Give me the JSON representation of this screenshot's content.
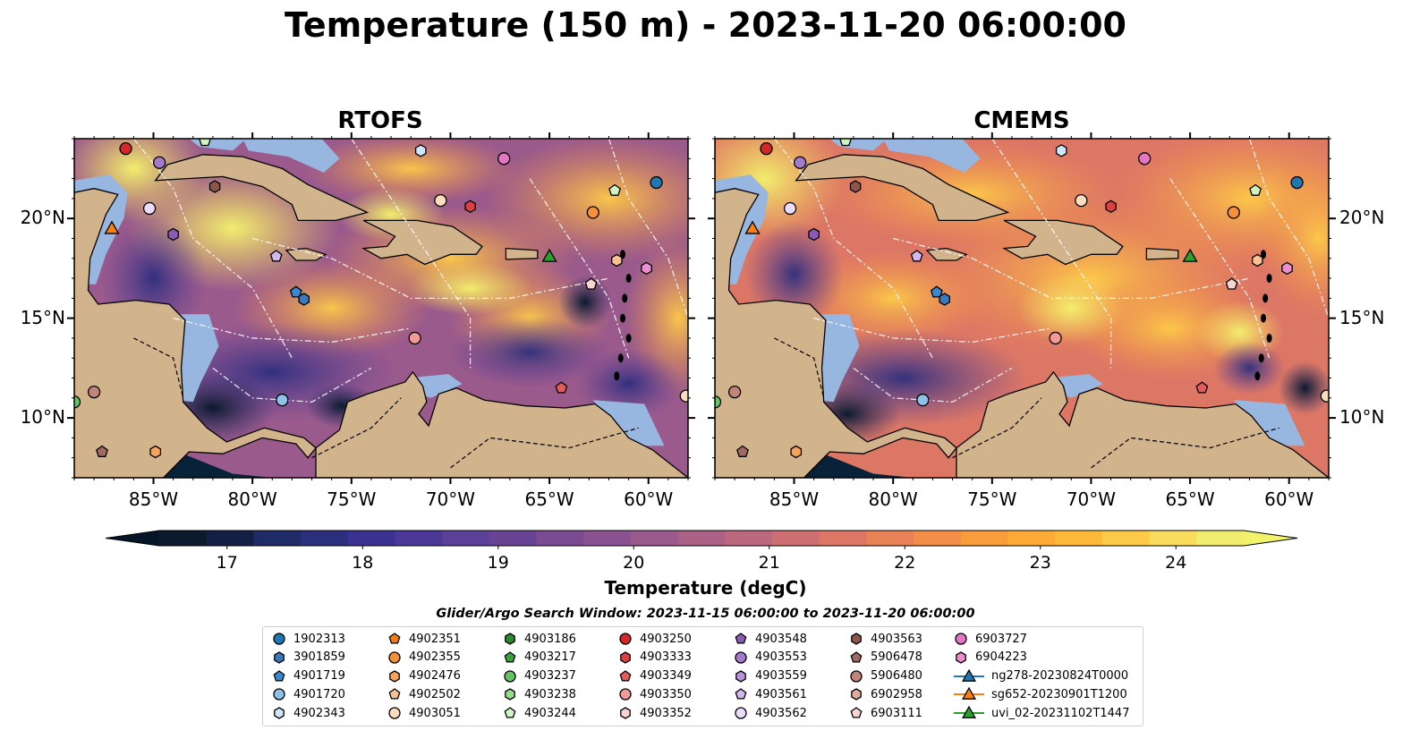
{
  "title": "Temperature (150 m) - 2023-11-20 06:00:00",
  "panels": [
    {
      "title": "RTOFS"
    },
    {
      "title": "CMEMS"
    }
  ],
  "axes": {
    "lon_ticks": [
      "85°W",
      "80°W",
      "75°W",
      "70°W",
      "65°W",
      "60°W"
    ],
    "lat_ticks": [
      "20°N",
      "15°N",
      "10°N"
    ],
    "lon_values": [
      -85,
      -80,
      -75,
      -70,
      -65,
      -60
    ],
    "lat_values": [
      20,
      15,
      10
    ],
    "lon_range": [
      -89,
      -58
    ],
    "lat_range": [
      7,
      24
    ]
  },
  "colorbar": {
    "label": "Temperature (degC)",
    "ticks": [
      "17",
      "18",
      "19",
      "20",
      "21",
      "22",
      "23",
      "24"
    ],
    "range": [
      16.5,
      24.5
    ],
    "extend": "both",
    "colors": [
      "#0c1a2e",
      "#141f45",
      "#1f2a66",
      "#2c2e7e",
      "#3a3190",
      "#4c3896",
      "#5c3f96",
      "#6a4494",
      "#7a4b92",
      "#8a5290",
      "#9a5a8c",
      "#ab6186",
      "#bc687e",
      "#cd6f73",
      "#dc7766",
      "#e98257",
      "#f38e48",
      "#f89c3c",
      "#fbab36",
      "#fdba3a",
      "#fdcb48",
      "#f9dc5b",
      "#f1ed6f"
    ],
    "under_color": "#041528",
    "over_color": "#f2f36b"
  },
  "search_window": "Glider/Argo Search Window: 2023-11-15 06:00:00 to 2023-11-20 06:00:00",
  "legend": {
    "columns": [
      [
        {
          "id": "1902313",
          "marker": "circle",
          "color": "#1f77b4"
        },
        {
          "id": "3901859",
          "marker": "hexagon",
          "color": "#3a7bbf"
        },
        {
          "id": "4901719",
          "marker": "pentagon",
          "color": "#3b87d0"
        },
        {
          "id": "4901720",
          "marker": "circle",
          "color": "#8fc0e8"
        },
        {
          "id": "4902343",
          "marker": "hexagon",
          "color": "#cfe6f8"
        }
      ],
      [
        {
          "id": "4902351",
          "marker": "pentagon",
          "color": "#f07c14"
        },
        {
          "id": "4902355",
          "marker": "circle",
          "color": "#f5913a"
        },
        {
          "id": "4902476",
          "marker": "hexagon",
          "color": "#f7a35c"
        },
        {
          "id": "4902502",
          "marker": "pentagon",
          "color": "#f8c18f"
        },
        {
          "id": "4903051",
          "marker": "circle",
          "color": "#fbdcbd"
        }
      ],
      [
        {
          "id": "4903186",
          "marker": "hexagon",
          "color": "#2e8b2e"
        },
        {
          "id": "4903217",
          "marker": "pentagon",
          "color": "#3da33d"
        },
        {
          "id": "4903237",
          "marker": "circle",
          "color": "#66c266"
        },
        {
          "id": "4903238",
          "marker": "hexagon",
          "color": "#98da8e"
        },
        {
          "id": "4903244",
          "marker": "pentagon",
          "color": "#cff4c2"
        }
      ],
      [
        {
          "id": "4903250",
          "marker": "circle",
          "color": "#d62728"
        },
        {
          "id": "4903333",
          "marker": "hexagon",
          "color": "#dc4040"
        },
        {
          "id": "4903349",
          "marker": "pentagon",
          "color": "#e35b5b"
        },
        {
          "id": "4903350",
          "marker": "circle",
          "color": "#f29a98"
        },
        {
          "id": "4903352",
          "marker": "hexagon",
          "color": "#fbd2d0"
        }
      ],
      [
        {
          "id": "4903548",
          "marker": "pentagon",
          "color": "#8a5cb8"
        },
        {
          "id": "4903553",
          "marker": "circle",
          "color": "#a47acc"
        },
        {
          "id": "4903559",
          "marker": "hexagon",
          "color": "#b994dc"
        },
        {
          "id": "4903561",
          "marker": "pentagon",
          "color": "#d3b8ee"
        },
        {
          "id": "4903562",
          "marker": "circle",
          "color": "#ecdcfb"
        }
      ],
      [
        {
          "id": "4903563",
          "marker": "hexagon",
          "color": "#8c564b"
        },
        {
          "id": "5906478",
          "marker": "pentagon",
          "color": "#a26a5e"
        },
        {
          "id": "5906480",
          "marker": "circle",
          "color": "#c0847a"
        },
        {
          "id": "6902958",
          "marker": "hexagon",
          "color": "#e3aaa2"
        },
        {
          "id": "6903111",
          "marker": "pentagon",
          "color": "#f8d6cf"
        }
      ],
      [
        {
          "id": "6903727",
          "marker": "circle",
          "color": "#e377c2"
        },
        {
          "id": "6904223",
          "marker": "hexagon",
          "color": "#ec8fd0"
        },
        {
          "id": "ng278-20230824T0000",
          "marker": "triangle-line",
          "color": "#1f77b4"
        },
        {
          "id": "sg652-20230901T1200",
          "marker": "triangle-line",
          "color": "#ff7f0e"
        },
        {
          "id": "uvi_02-20231102T1447",
          "marker": "triangle-line",
          "color": "#2ca02c"
        }
      ]
    ]
  },
  "map_colors": {
    "land": "#d2b48c",
    "shelf": "#97b6e0",
    "coast": "#000000",
    "eez": "#ffffff"
  },
  "floats": [
    {
      "lon": -86.4,
      "lat": 23.5,
      "marker": "circle",
      "color": "#d62728"
    },
    {
      "lon": -84.7,
      "lat": 22.8,
      "marker": "circle",
      "color": "#a47acc"
    },
    {
      "lon": -82.4,
      "lat": 23.9,
      "marker": "pentagon",
      "color": "#cff4c2"
    },
    {
      "lon": -81.9,
      "lat": 21.6,
      "marker": "hexagon",
      "color": "#8c564b"
    },
    {
      "lon": -85.2,
      "lat": 20.5,
      "marker": "circle",
      "color": "#ecdcfb"
    },
    {
      "lon": -84.0,
      "lat": 19.2,
      "marker": "hexagon",
      "color": "#8a5cb8"
    },
    {
      "lon": -87.1,
      "lat": 19.5,
      "marker": "triangle",
      "color": "#ff7f0e"
    },
    {
      "lon": -78.8,
      "lat": 18.1,
      "marker": "pentagon",
      "color": "#d3b8ee"
    },
    {
      "lon": -77.8,
      "lat": 16.3,
      "marker": "pentagon",
      "color": "#3b87d0"
    },
    {
      "lon": -77.4,
      "lat": 15.95,
      "marker": "hexagon",
      "color": "#3a7bbf"
    },
    {
      "lon": -78.5,
      "lat": 10.9,
      "marker": "circle",
      "color": "#8fc0e8"
    },
    {
      "lon": -71.5,
      "lat": 23.4,
      "marker": "hexagon",
      "color": "#cfe6f8"
    },
    {
      "lon": -70.5,
      "lat": 20.9,
      "marker": "circle",
      "color": "#fbdcbd"
    },
    {
      "lon": -69.0,
      "lat": 20.6,
      "marker": "hexagon",
      "color": "#dc4040"
    },
    {
      "lon": -67.3,
      "lat": 23.0,
      "marker": "circle",
      "color": "#e377c2"
    },
    {
      "lon": -65.0,
      "lat": 18.1,
      "marker": "triangle",
      "color": "#2ca02c"
    },
    {
      "lon": -62.8,
      "lat": 20.3,
      "marker": "circle",
      "color": "#f5913a"
    },
    {
      "lon": -61.7,
      "lat": 21.4,
      "marker": "pentagon",
      "color": "#cff4c2"
    },
    {
      "lon": -59.6,
      "lat": 21.8,
      "marker": "circle",
      "color": "#1f77b4"
    },
    {
      "lon": -61.6,
      "lat": 17.9,
      "marker": "hexagon",
      "color": "#f8c18f"
    },
    {
      "lon": -60.1,
      "lat": 17.5,
      "marker": "hexagon",
      "color": "#ec8fd0"
    },
    {
      "lon": -62.9,
      "lat": 16.7,
      "marker": "pentagon",
      "color": "#f8d6cf"
    },
    {
      "lon": -71.8,
      "lat": 14.0,
      "marker": "circle",
      "color": "#f29a98"
    },
    {
      "lon": -64.4,
      "lat": 11.5,
      "marker": "pentagon",
      "color": "#e35b5b"
    },
    {
      "lon": -58.1,
      "lat": 11.1,
      "marker": "circle",
      "color": "#fbdcbd"
    },
    {
      "lon": -88.0,
      "lat": 11.3,
      "marker": "circle",
      "color": "#c0847a"
    },
    {
      "lon": -89.0,
      "lat": 10.8,
      "marker": "circle",
      "color": "#66c266"
    },
    {
      "lon": -87.6,
      "lat": 8.3,
      "marker": "pentagon",
      "color": "#a26a5e"
    },
    {
      "lon": -84.9,
      "lat": 8.3,
      "marker": "hexagon",
      "color": "#f7a35c"
    }
  ]
}
